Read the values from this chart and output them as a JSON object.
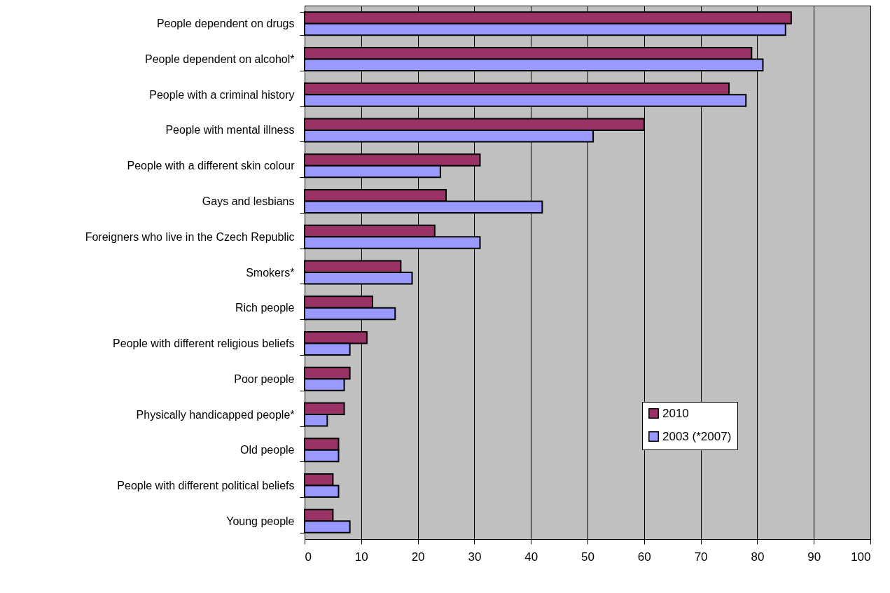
{
  "chart_data": {
    "type": "bar",
    "orientation": "horizontal",
    "categories": [
      "People dependent on drugs",
      "People dependent on alcohol*",
      "People with a criminal history",
      "People with mental illness",
      "People with a different skin colour",
      "Gays and lesbians",
      "Foreigners who live in the Czech Republic",
      "Smokers*",
      "Rich people",
      "People with different religious beliefs",
      "Poor people",
      "Physically handicapped people*",
      "Old people",
      "People with different political beliefs",
      "Young people"
    ],
    "series": [
      {
        "name": "2010",
        "color": "#993366",
        "values": [
          86,
          79,
          75,
          60,
          31,
          25,
          23,
          17,
          12,
          11,
          8,
          7,
          6,
          5,
          5
        ]
      },
      {
        "name": "2003 (*2007)",
        "color": "#9999ff",
        "values": [
          85,
          81,
          78,
          51,
          24,
          42,
          31,
          19,
          16,
          8,
          7,
          4,
          6,
          6,
          8
        ]
      }
    ],
    "xlim": [
      0,
      100
    ],
    "xticks": [
      0,
      10,
      20,
      30,
      40,
      50,
      60,
      70,
      80,
      90,
      100
    ],
    "grid": "x",
    "legend": "right"
  }
}
